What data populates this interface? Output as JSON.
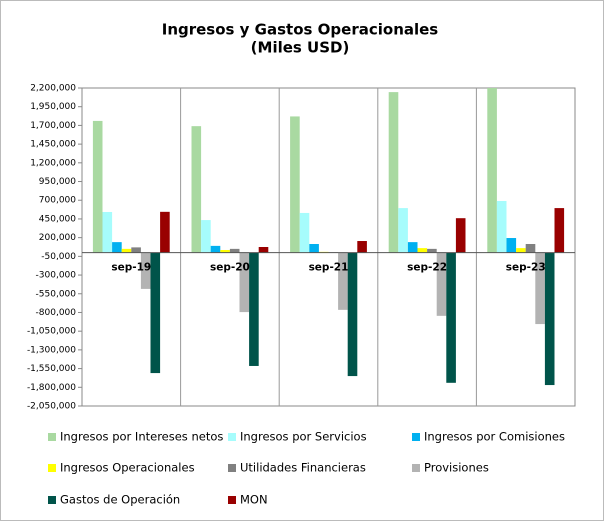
{
  "chart_data": {
    "type": "bar",
    "title": "Ingresos y Gastos Operacionales",
    "subtitle": "(Miles USD)",
    "categories": [
      "sep-19",
      "sep-20",
      "sep-21",
      "sep-22",
      "sep-23"
    ],
    "series": [
      {
        "name": "Ingresos por Intereses netos",
        "color": "#a9d9a1",
        "values": [
          1760000,
          1690000,
          1820000,
          2145000,
          2200000
        ]
      },
      {
        "name": "Ingresos por Servicios",
        "color": "#a6fcfc",
        "values": [
          543000,
          435000,
          530000,
          595000,
          690000
        ]
      },
      {
        "name": "Ingresos por Comisiones",
        "color": "#00b0f0",
        "values": [
          140000,
          90000,
          115000,
          140000,
          195000
        ]
      },
      {
        "name": "Ingresos Operacionales",
        "color": "#ffff00",
        "values": [
          50000,
          35000,
          10000,
          60000,
          60000
        ]
      },
      {
        "name": "Utilidades Financieras",
        "color": "#808080",
        "values": [
          70000,
          50000,
          5000,
          50000,
          115000
        ]
      },
      {
        "name": "Provisiones",
        "color": "#b3b3b3",
        "values": [
          -485000,
          -795000,
          -765000,
          -845000,
          -955000
        ]
      },
      {
        "name": "Gastos de Operación",
        "color": "#00544a",
        "values": [
          -1610000,
          -1515000,
          -1650000,
          -1740000,
          -1770000
        ]
      },
      {
        "name": "MON",
        "color": "#990000",
        "values": [
          545000,
          75000,
          155000,
          460000,
          595000
        ]
      }
    ],
    "ylim": [
      -2050000,
      2200000
    ],
    "yticks": [
      {
        "value": -2050000,
        "label": "-2,050,000"
      },
      {
        "value": -1800000,
        "label": "-1,800,000"
      },
      {
        "value": -1550000,
        "label": "-1,550,000"
      },
      {
        "value": -1300000,
        "label": "-1,300,000"
      },
      {
        "value": -1050000,
        "label": "-1,050,000"
      },
      {
        "value": -800000,
        "label": "-800,000"
      },
      {
        "value": -550000,
        "label": "-550,000"
      },
      {
        "value": -300000,
        "label": "-300,000"
      },
      {
        "value": -50000,
        "label": "-50,000"
      },
      {
        "value": 200000,
        "label": "200,000"
      },
      {
        "value": 450000,
        "label": "450,000"
      },
      {
        "value": 700000,
        "label": "700,000"
      },
      {
        "value": 950000,
        "label": "950,000"
      },
      {
        "value": 1200000,
        "label": "1,200,000"
      },
      {
        "value": 1450000,
        "label": "1,450,000"
      },
      {
        "value": 1700000,
        "label": "1,700,000"
      },
      {
        "value": 1950000,
        "label": "1,950,000"
      },
      {
        "value": 2200000,
        "label": "2,200,000"
      }
    ]
  }
}
